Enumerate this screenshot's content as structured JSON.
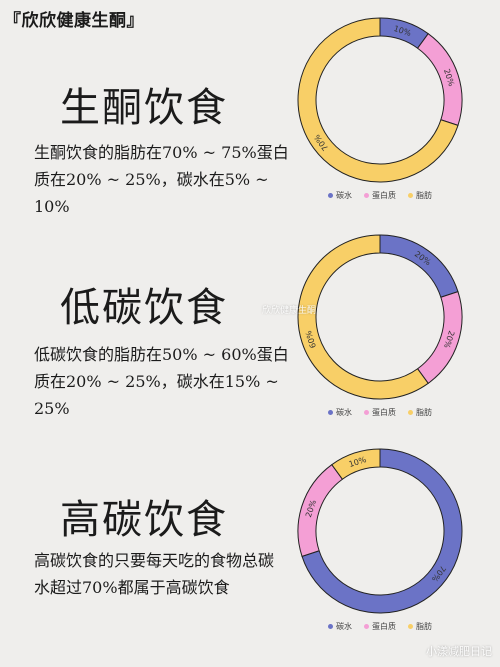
{
  "brand": "『欣欣健康生酮』",
  "sections": [
    {
      "title": "生酮饮食",
      "body": "生酮饮食的脂肪在70% ~ 75%蛋白质在20% ~ 25%，碳水在5% ~ 10%"
    },
    {
      "title": "低碳饮食",
      "body": "低碳饮食的脂肪在50% ~ 60%蛋白质在20% ~ 25%，碳水在15% ~ 25%"
    },
    {
      "title": "高碳饮食",
      "body": "高碳饮食的只要每天吃的食物总碳水超过70%都属于高碳饮食"
    }
  ],
  "legend": [
    {
      "label": "碳水",
      "color": "#6b73c6"
    },
    {
      "label": "蛋白质",
      "color": "#f49fd5"
    },
    {
      "label": "脂肪",
      "color": "#f8cf67"
    }
  ],
  "watermark": "欣欣健康生酮",
  "footer": "小漾减肥日记",
  "chart_data": [
    {
      "type": "pie",
      "categories": [
        "碳水",
        "蛋白质",
        "脂肪"
      ],
      "values": [
        10,
        20,
        70
      ],
      "labels": [
        "10%",
        "20%",
        "70%"
      ],
      "colors": [
        "#6b73c6",
        "#f49fd5",
        "#f8cf67"
      ],
      "legend": "bottom"
    },
    {
      "type": "pie",
      "categories": [
        "碳水",
        "蛋白质",
        "脂肪"
      ],
      "values": [
        20,
        20,
        60
      ],
      "labels": [
        "20%",
        "20%",
        "60%"
      ],
      "colors": [
        "#6b73c6",
        "#f49fd5",
        "#f8cf67"
      ],
      "legend": "bottom"
    },
    {
      "type": "pie",
      "categories": [
        "碳水",
        "蛋白质",
        "脂肪"
      ],
      "values": [
        70,
        20,
        10
      ],
      "labels": [
        "70%",
        "20%",
        "10%"
      ],
      "colors": [
        "#6b73c6",
        "#f49fd5",
        "#f8cf67"
      ],
      "legend": "bottom"
    }
  ]
}
